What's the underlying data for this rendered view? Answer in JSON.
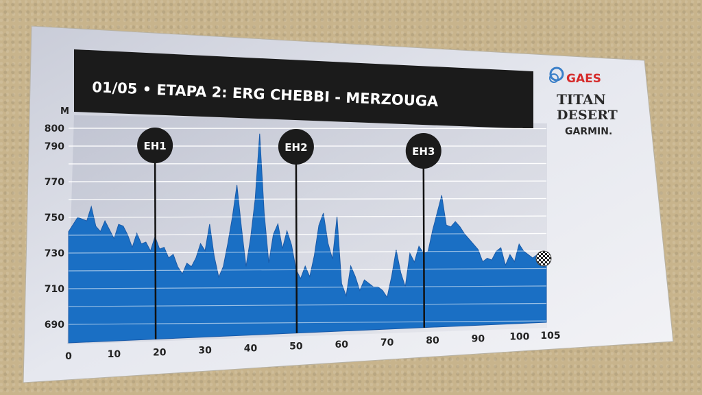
{
  "chart_data": {
    "type": "area",
    "title": "01/05 • ETAPA 2: ERG CHEBBI - MERZOUGA",
    "ylabel": "M",
    "xlabel": "",
    "xlim": [
      0,
      105
    ],
    "ylim": [
      680,
      800
    ],
    "x_ticks": [
      0,
      10,
      20,
      30,
      40,
      50,
      60,
      70,
      80,
      90,
      100,
      105
    ],
    "y_ticks": [
      690,
      710,
      730,
      750,
      770,
      790,
      800
    ],
    "grid": true,
    "fill_color": "#1a6fc4",
    "checkpoints": [
      {
        "label": "EH1",
        "x": 19
      },
      {
        "label": "EH2",
        "x": 50
      },
      {
        "label": "EH3",
        "x": 78
      }
    ],
    "x": [
      0,
      2,
      4,
      5,
      6,
      7,
      8,
      9,
      10,
      11,
      12,
      13,
      14,
      15,
      16,
      17,
      18,
      19,
      20,
      21,
      22,
      23,
      24,
      25,
      26,
      27,
      28,
      29,
      30,
      31,
      32,
      33,
      34,
      35,
      36,
      37,
      38,
      39,
      40,
      41,
      42,
      43,
      44,
      45,
      46,
      47,
      48,
      49,
      50,
      51,
      52,
      53,
      54,
      55,
      56,
      57,
      58,
      59,
      60,
      61,
      62,
      63,
      64,
      65,
      66,
      67,
      68,
      69,
      70,
      71,
      72,
      73,
      74,
      75,
      76,
      77,
      78,
      79,
      80,
      81,
      82,
      83,
      84,
      85,
      86,
      87,
      88,
      89,
      90,
      91,
      92,
      93,
      94,
      95,
      96,
      97,
      98,
      99,
      100,
      101,
      102,
      103,
      104,
      105
    ],
    "values": [
      742,
      750,
      748,
      756,
      745,
      742,
      748,
      743,
      738,
      746,
      745,
      740,
      733,
      741,
      735,
      736,
      731,
      739,
      732,
      733,
      727,
      729,
      722,
      718,
      724,
      722,
      727,
      735,
      731,
      746,
      728,
      716,
      722,
      735,
      750,
      768,
      744,
      722,
      738,
      760,
      797,
      752,
      724,
      740,
      746,
      732,
      742,
      734,
      720,
      715,
      722,
      716,
      728,
      745,
      752,
      735,
      726,
      750,
      712,
      705,
      722,
      716,
      708,
      714,
      712,
      710,
      710,
      708,
      704,
      716,
      731,
      718,
      710,
      729,
      724,
      733,
      729,
      730,
      742,
      752,
      762,
      745,
      744,
      747,
      744,
      740,
      737,
      734,
      731,
      724,
      726,
      725,
      730,
      732,
      722,
      728,
      724,
      734,
      730,
      728,
      726,
      728,
      724,
      724
    ]
  },
  "card": {
    "logo_brand": "GAES",
    "logo_event_line1": "TITAN",
    "logo_event_line2": "DESERT",
    "logo_sponsor": "GARMIN."
  }
}
